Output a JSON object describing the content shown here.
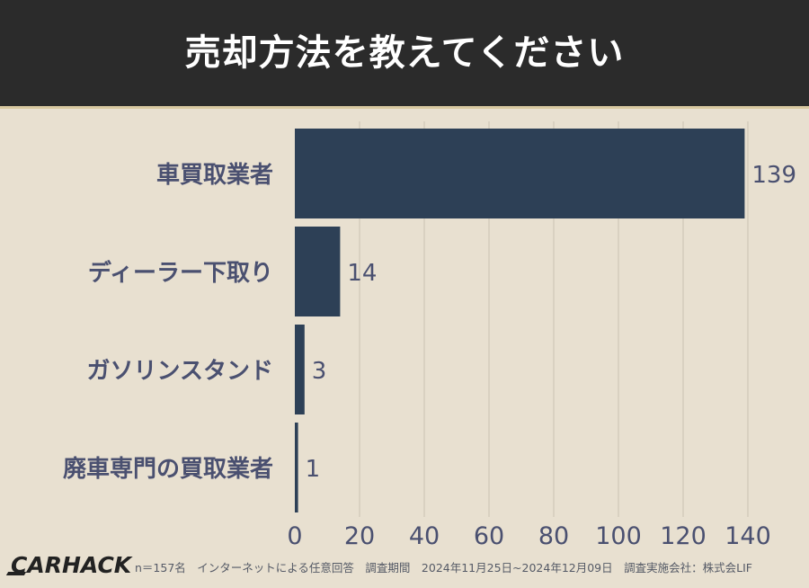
{
  "header": {
    "title": "売却方法を教えてください"
  },
  "colors": {
    "background": "#e8e0d0",
    "header_bg": "#2b2b2b",
    "bar": "#2d4056",
    "label_text": "#4a5070",
    "grid": "#d4ccbc"
  },
  "chart_data": {
    "type": "bar",
    "orientation": "horizontal",
    "title": "売却方法を教えてください",
    "categories": [
      "車買取業者",
      "ディーラー下取り",
      "ガソリンスタンド",
      "廃車専門の買取業者"
    ],
    "values": [
      139,
      14,
      3,
      1
    ],
    "xlim": [
      0,
      140
    ],
    "xticks": [
      0,
      20,
      40,
      60,
      80,
      100,
      120,
      140
    ],
    "grid": true,
    "xlabel": "",
    "ylabel": ""
  },
  "footer": {
    "logo": "CARHACK",
    "note": "n＝157名　インターネットによる任意回答　調査期間　2024年11月25日~2024年12月09日　調査実施会社：株式会LIF"
  }
}
